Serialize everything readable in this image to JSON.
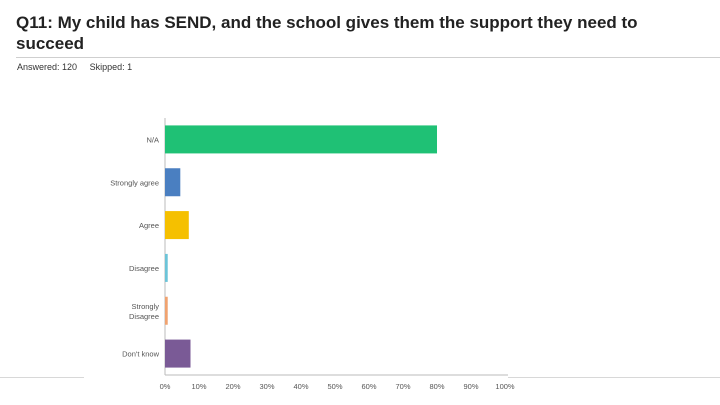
{
  "header": {
    "title": "Q11: My child has SEND, and the school gives them the support they need to succeed",
    "answered": "Answered: 120",
    "skipped": "Skipped: 1"
  },
  "chart_data": {
    "type": "bar",
    "orientation": "horizontal",
    "categories": [
      "N/A",
      "Strongly agree",
      "Agree",
      "Disagree",
      "Strongly Disagree",
      "Don't know"
    ],
    "values": [
      80,
      4.5,
      7,
      0.8,
      0.8,
      7.5
    ],
    "colors": [
      "#1fc175",
      "#4a7fc1",
      "#f5c000",
      "#6cc4d8",
      "#f0a370",
      "#7a5a96"
    ],
    "xlim": [
      0,
      100
    ],
    "xticks": [
      "0%",
      "10%",
      "20%",
      "30%",
      "40%",
      "50%",
      "60%",
      "70%",
      "80%",
      "90%",
      "100%"
    ],
    "grid": false
  }
}
